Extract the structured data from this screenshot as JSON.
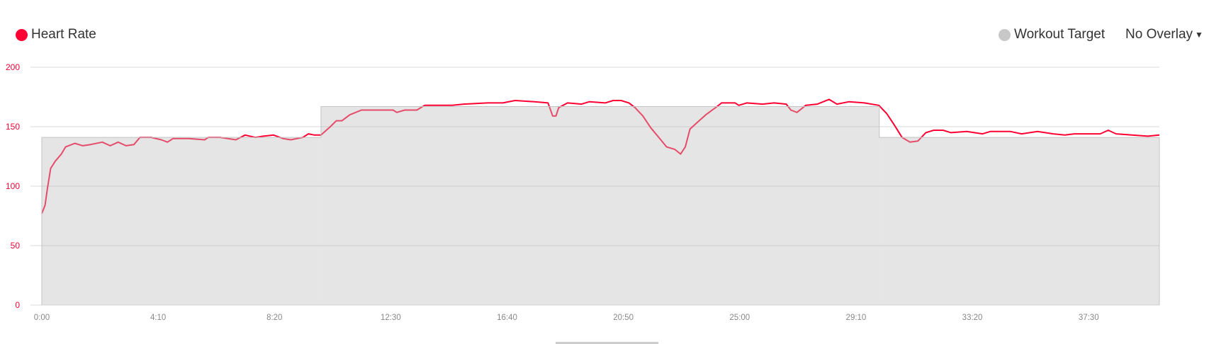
{
  "legend": {
    "heart_rate": {
      "label": "Heart Rate",
      "color": "#ff0033"
    },
    "workout_target": {
      "label": "Workout Target",
      "color": "#c8c8c8"
    }
  },
  "overlay_dropdown": {
    "selected": "No Overlay",
    "icon": "caret-down-icon"
  },
  "chart_data": {
    "type": "line",
    "xlabel": "",
    "ylabel": "",
    "ylim": [
      0,
      200
    ],
    "xlim": [
      "0:00",
      "40:02"
    ],
    "y_ticks": [
      "0",
      "50",
      "100",
      "150",
      "200"
    ],
    "x_ticks": [
      "0:00",
      "4:10",
      "8:20",
      "12:30",
      "16:40",
      "20:50",
      "25:00",
      "29:10",
      "33:20",
      "37:30"
    ],
    "grid": true,
    "series": [
      {
        "name": "Heart Rate",
        "color": "#ff0033",
        "points": [
          [
            "0:00",
            77
          ],
          [
            "0:07",
            84
          ],
          [
            "0:12",
            98
          ],
          [
            "0:19",
            115
          ],
          [
            "0:29",
            121
          ],
          [
            "0:42",
            127
          ],
          [
            "0:51",
            133
          ],
          [
            "1:11",
            136
          ],
          [
            "1:28",
            134
          ],
          [
            "1:45",
            135
          ],
          [
            "2:10",
            137
          ],
          [
            "2:27",
            134
          ],
          [
            "2:44",
            137
          ],
          [
            "3:01",
            134
          ],
          [
            "3:18",
            135
          ],
          [
            "3:31",
            141
          ],
          [
            "3:55",
            141
          ],
          [
            "4:17",
            139
          ],
          [
            "4:30",
            137
          ],
          [
            "4:42",
            140
          ],
          [
            "5:16",
            140
          ],
          [
            "5:50",
            139
          ],
          [
            "5:58",
            141
          ],
          [
            "6:23",
            141
          ],
          [
            "6:57",
            139
          ],
          [
            "7:17",
            143
          ],
          [
            "7:39",
            141
          ],
          [
            "7:56",
            142
          ],
          [
            "8:18",
            143
          ],
          [
            "8:39",
            140
          ],
          [
            "8:55",
            139
          ],
          [
            "9:21",
            141
          ],
          [
            "9:33",
            144
          ],
          [
            "9:46",
            143
          ],
          [
            "10:00",
            143
          ],
          [
            "10:20",
            150
          ],
          [
            "10:33",
            155
          ],
          [
            "10:45",
            155
          ],
          [
            "11:02",
            160
          ],
          [
            "11:27",
            164
          ],
          [
            "12:01",
            164
          ],
          [
            "12:35",
            164
          ],
          [
            "12:43",
            162
          ],
          [
            "13:00",
            164
          ],
          [
            "13:26",
            164
          ],
          [
            "13:43",
            168
          ],
          [
            "14:16",
            168
          ],
          [
            "14:42",
            168
          ],
          [
            "15:07",
            169
          ],
          [
            "15:58",
            170
          ],
          [
            "16:31",
            170
          ],
          [
            "16:57",
            172
          ],
          [
            "17:39",
            171
          ],
          [
            "18:08",
            170
          ],
          [
            "18:18",
            159
          ],
          [
            "18:25",
            159
          ],
          [
            "18:31",
            166
          ],
          [
            "18:50",
            170
          ],
          [
            "19:20",
            169
          ],
          [
            "19:37",
            171
          ],
          [
            "20:11",
            170
          ],
          [
            "20:28",
            172
          ],
          [
            "20:45",
            172
          ],
          [
            "21:02",
            170
          ],
          [
            "21:15",
            166
          ],
          [
            "21:32",
            159
          ],
          [
            "21:49",
            149
          ],
          [
            "22:06",
            141
          ],
          [
            "22:23",
            133
          ],
          [
            "22:40",
            131
          ],
          [
            "22:53",
            127
          ],
          [
            "23:03",
            133
          ],
          [
            "23:13",
            148
          ],
          [
            "23:30",
            154
          ],
          [
            "23:47",
            160
          ],
          [
            "24:08",
            166
          ],
          [
            "24:21",
            170
          ],
          [
            "24:50",
            170
          ],
          [
            "24:58",
            168
          ],
          [
            "25:15",
            170
          ],
          [
            "25:49",
            169
          ],
          [
            "26:14",
            170
          ],
          [
            "26:40",
            169
          ],
          [
            "26:50",
            164
          ],
          [
            "27:03",
            162
          ],
          [
            "27:22",
            168
          ],
          [
            "27:47",
            169
          ],
          [
            "28:12",
            173
          ],
          [
            "28:29",
            169
          ],
          [
            "28:55",
            171
          ],
          [
            "29:28",
            170
          ],
          [
            "29:59",
            168
          ],
          [
            "30:16",
            161
          ],
          [
            "30:33",
            151
          ],
          [
            "30:49",
            141
          ],
          [
            "31:06",
            137
          ],
          [
            "31:23",
            138
          ],
          [
            "31:40",
            145
          ],
          [
            "31:57",
            147
          ],
          [
            "32:17",
            147
          ],
          [
            "32:34",
            145
          ],
          [
            "33:08",
            146
          ],
          [
            "33:42",
            144
          ],
          [
            "33:59",
            146
          ],
          [
            "34:41",
            146
          ],
          [
            "35:06",
            144
          ],
          [
            "35:40",
            146
          ],
          [
            "36:14",
            144
          ],
          [
            "36:39",
            143
          ],
          [
            "36:59",
            144
          ],
          [
            "37:55",
            144
          ],
          [
            "38:12",
            147
          ],
          [
            "38:29",
            144
          ],
          [
            "39:03",
            143
          ],
          [
            "39:37",
            142
          ],
          [
            "40:02",
            143
          ]
        ]
      },
      {
        "name": "Workout Target",
        "color": "#c8c8c8",
        "steps": [
          {
            "start": "0:00",
            "end": "10:00",
            "value": 141
          },
          {
            "start": "10:00",
            "end": "30:00",
            "value": 167
          },
          {
            "start": "30:00",
            "end": "40:02",
            "value": 141
          }
        ]
      }
    ]
  }
}
